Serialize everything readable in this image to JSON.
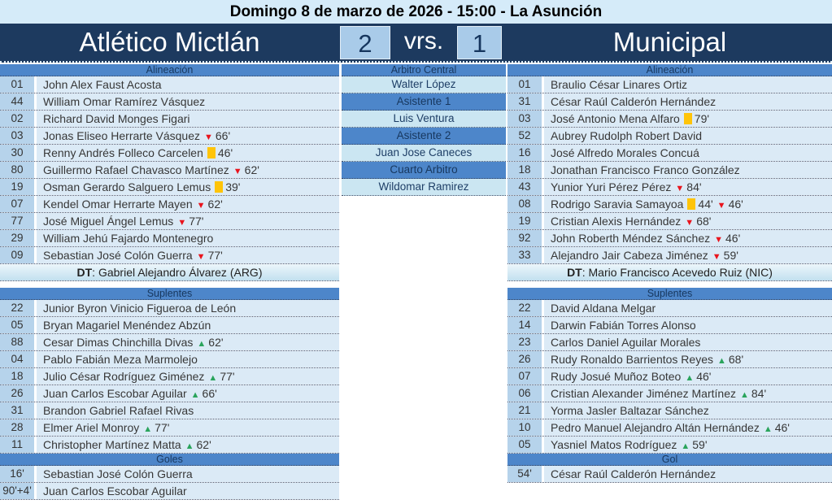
{
  "header": {
    "date_line": "Domingo 8 de marzo de 2026 - 15:00 - La Asunción",
    "vrs": "vrs."
  },
  "teams": {
    "home": {
      "name": "Atlético Mictlán",
      "score": "2"
    },
    "away": {
      "name": "Municipal",
      "score": "1"
    }
  },
  "labels": {
    "lineup": "Alineación",
    "subs": "Suplentes",
    "coach": "DT",
    "coach_sep": ": ",
    "goals_home": "Goles",
    "goals_away": "Gol"
  },
  "colors": {
    "navy": "#1d3a5f",
    "band_blue": "#4d86ca",
    "date_bar": "#d5ebf9",
    "score_box": "#a9cbe9",
    "number_cell": "#b6d3eb",
    "name_cell": "#dbeaf6",
    "official_cell": "#cbe6f2",
    "sub_out_red": "#e9141d",
    "sub_in_green": "#2aa45c",
    "yellow_card": "#ffc408"
  },
  "officials": [
    {
      "role": "Arbitro Central",
      "name": "Walter López"
    },
    {
      "role": "Asistente 1",
      "name": "Luis Ventura"
    },
    {
      "role": "Asistente 2",
      "name": "Juan Jose Caneces"
    },
    {
      "role": "Cuarto Arbitro",
      "name": "Wildomar Ramirez"
    }
  ],
  "home": {
    "coach": "Gabriel Alejandro Álvarez (ARG)",
    "lineup": [
      {
        "num": "01",
        "name": "John Alex Faust Acosta",
        "events": []
      },
      {
        "num": "44",
        "name": "William Omar Ramírez Vásquez",
        "events": []
      },
      {
        "num": "02",
        "name": "Richard David Monges Figari",
        "events": []
      },
      {
        "num": "03",
        "name": "Jonas Eliseo Herrarte Vásquez",
        "events": [
          {
            "t": "out",
            "m": "66'"
          }
        ]
      },
      {
        "num": "30",
        "name": "Renny Andrés Folleco Carcelen",
        "events": [
          {
            "t": "yc",
            "m": "46'"
          }
        ]
      },
      {
        "num": "80",
        "name": "Guillermo Rafael Chavasco Martínez",
        "events": [
          {
            "t": "out",
            "m": "62'"
          }
        ]
      },
      {
        "num": "19",
        "name": "Osman Gerardo Salguero Lemus",
        "events": [
          {
            "t": "yc",
            "m": "39'"
          }
        ]
      },
      {
        "num": "07",
        "name": "Kendel Omar Herrarte Mayen",
        "events": [
          {
            "t": "out",
            "m": "62'"
          }
        ]
      },
      {
        "num": "77",
        "name": "José Miguel Ángel Lemus",
        "events": [
          {
            "t": "out",
            "m": "77'"
          }
        ]
      },
      {
        "num": "29",
        "name": "William Jehú Fajardo Montenegro",
        "events": []
      },
      {
        "num": "09",
        "name": "Sebastian José Colón Guerra",
        "events": [
          {
            "t": "out",
            "m": "77'"
          }
        ]
      }
    ],
    "subs": [
      {
        "num": "22",
        "name": "Junior Byron Vinicio Figueroa de León",
        "events": []
      },
      {
        "num": "05",
        "name": "Bryan Magariel Menéndez Abzún",
        "events": []
      },
      {
        "num": "88",
        "name": "Cesar Dimas Chinchilla Divas",
        "events": [
          {
            "t": "in",
            "m": "62'"
          }
        ]
      },
      {
        "num": "04",
        "name": "Pablo Fabián Meza Marmolejo",
        "events": []
      },
      {
        "num": "18",
        "name": "Julio César Rodríguez Giménez",
        "events": [
          {
            "t": "in",
            "m": "77'"
          }
        ]
      },
      {
        "num": "26",
        "name": "Juan Carlos Escobar Aguilar",
        "events": [
          {
            "t": "in",
            "m": "66'"
          }
        ]
      },
      {
        "num": "31",
        "name": "Brandon Gabriel Rafael Rivas",
        "events": []
      },
      {
        "num": "28",
        "name": "Elmer Ariel Monroy",
        "events": [
          {
            "t": "in",
            "m": "77'"
          }
        ]
      },
      {
        "num": "11",
        "name": "Christopher Martínez Matta",
        "events": [
          {
            "t": "in",
            "m": "62'"
          }
        ]
      }
    ],
    "goals": [
      {
        "min": "16'",
        "name": "Sebastian José Colón Guerra"
      },
      {
        "min": "90'+4'",
        "name": "Juan Carlos Escobar Aguilar"
      }
    ]
  },
  "away": {
    "coach": "Mario Francisco Acevedo Ruiz (NIC)",
    "lineup": [
      {
        "num": "01",
        "name": "Braulio César Linares Ortiz",
        "events": []
      },
      {
        "num": "31",
        "name": "César Raúl Calderón Hernández",
        "events": []
      },
      {
        "num": "03",
        "name": "José Antonio Mena Alfaro",
        "events": [
          {
            "t": "yc",
            "m": "79'"
          }
        ]
      },
      {
        "num": "52",
        "name": "Aubrey Rudolph Robert David",
        "events": []
      },
      {
        "num": "16",
        "name": "José Alfredo Morales Concuá",
        "events": []
      },
      {
        "num": "18",
        "name": "Jonathan Francisco Franco González",
        "events": []
      },
      {
        "num": "43",
        "name": "Yunior Yuri Pérez Pérez",
        "events": [
          {
            "t": "out",
            "m": "84'"
          }
        ]
      },
      {
        "num": "08",
        "name": "Rodrigo Saravia Samayoa",
        "events": [
          {
            "t": "yc",
            "m": "44'"
          },
          {
            "t": "out",
            "m": "46'"
          }
        ]
      },
      {
        "num": "19",
        "name": "Cristian Alexis Hernández",
        "events": [
          {
            "t": "out",
            "m": "68'"
          }
        ]
      },
      {
        "num": "92",
        "name": "John Roberth Méndez Sánchez",
        "events": [
          {
            "t": "out",
            "m": "46'"
          }
        ]
      },
      {
        "num": "33",
        "name": "Alejandro Jair Cabeza Jiménez",
        "events": [
          {
            "t": "out",
            "m": "59'"
          }
        ]
      }
    ],
    "subs": [
      {
        "num": "22",
        "name": "David Aldana Melgar",
        "events": []
      },
      {
        "num": "14",
        "name": "Darwin Fabián Torres Alonso",
        "events": []
      },
      {
        "num": "23",
        "name": "Carlos Daniel Aguilar Morales",
        "events": []
      },
      {
        "num": "26",
        "name": "Rudy Ronaldo Barrientos Reyes",
        "events": [
          {
            "t": "in",
            "m": "68'"
          }
        ]
      },
      {
        "num": "07",
        "name": "Rudy Josué Muñoz Boteo",
        "events": [
          {
            "t": "in",
            "m": "46'"
          }
        ]
      },
      {
        "num": "06",
        "name": "Cristian Alexander Jiménez Martínez",
        "events": [
          {
            "t": "in",
            "m": "84'"
          }
        ]
      },
      {
        "num": "21",
        "name": "Yorma Jasler Baltazar Sánchez",
        "events": []
      },
      {
        "num": "10",
        "name": "Pedro Manuel Alejandro Altán Hernández",
        "events": [
          {
            "t": "in",
            "m": "46'"
          }
        ]
      },
      {
        "num": "05",
        "name": "Yasniel Matos Rodríguez",
        "events": [
          {
            "t": "in",
            "m": "59'"
          }
        ]
      }
    ],
    "goals": [
      {
        "min": "54'",
        "name": "César Raúl Calderón Hernández"
      }
    ]
  }
}
